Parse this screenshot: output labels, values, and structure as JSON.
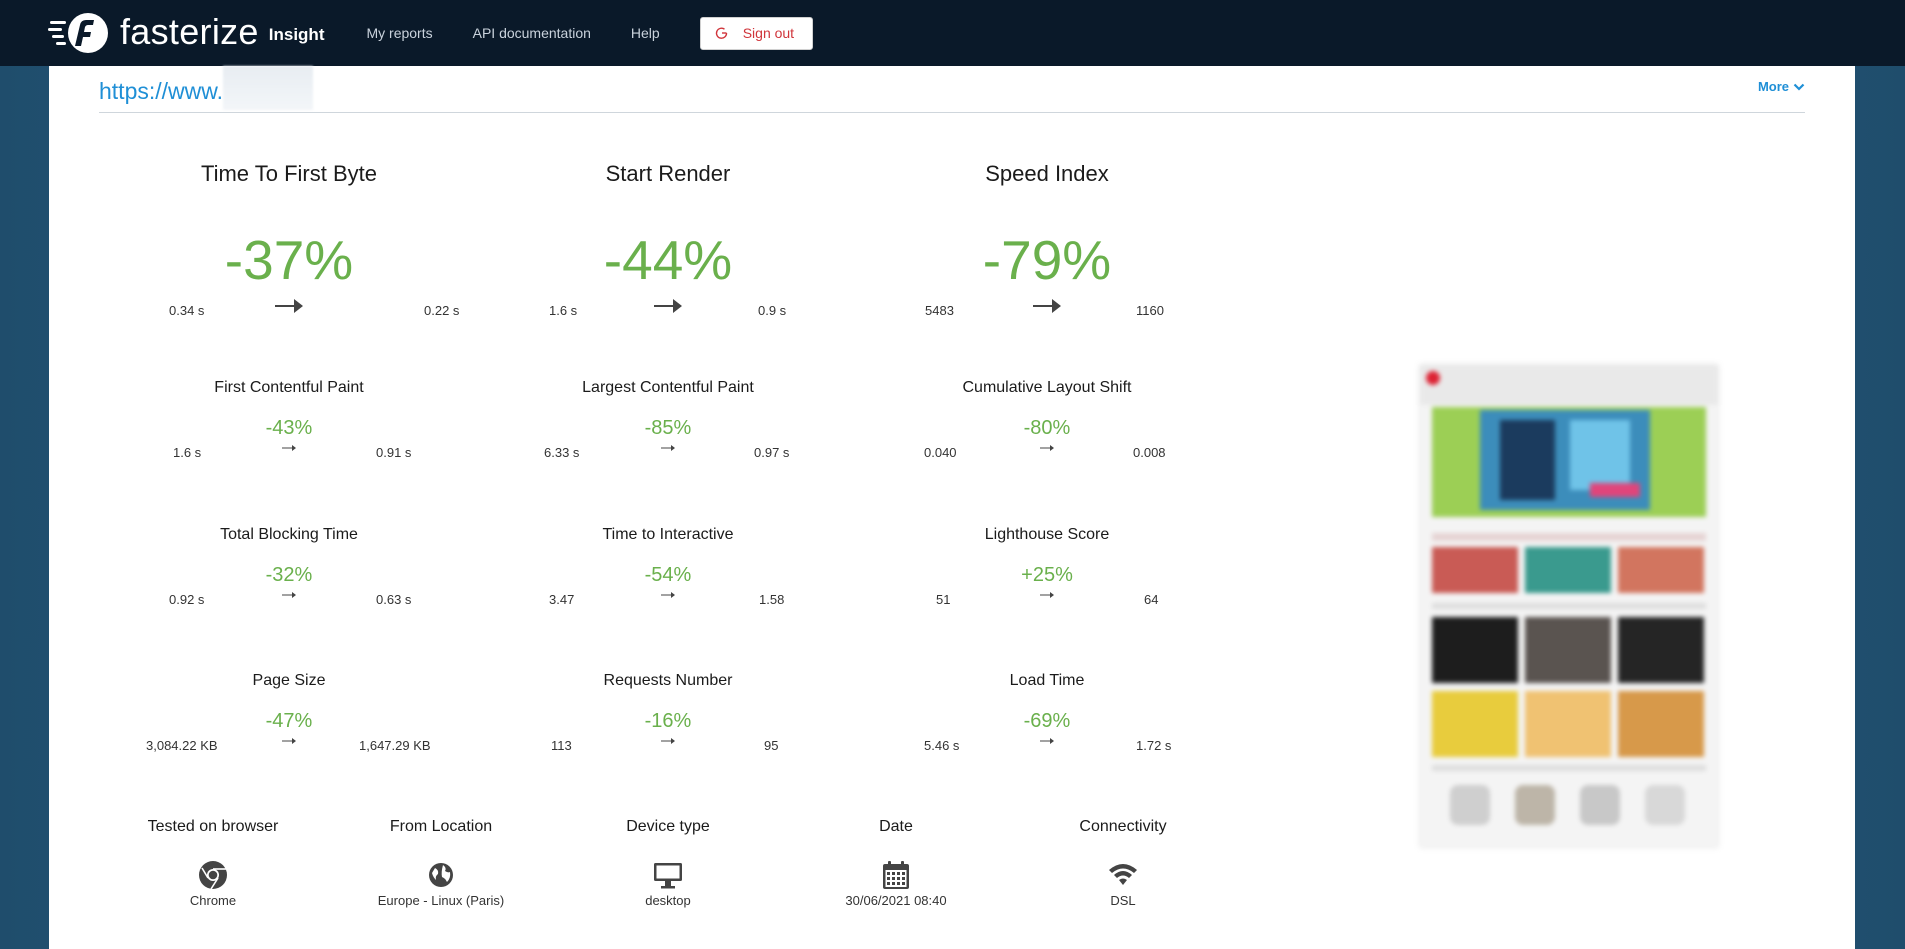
{
  "nav": {
    "brand": "fasterize",
    "brand_sub": "Insight",
    "links": [
      "My reports",
      "API documentation",
      "Help"
    ],
    "signout": "Sign out"
  },
  "url": {
    "text": "https://www.",
    "more_label": "More"
  },
  "colors": {
    "navbar": "#0a1929",
    "positive": "#6ab04c",
    "link": "#1f8fd6",
    "signout": "#d0343a"
  },
  "metrics": [
    {
      "title": "Time To First Byte",
      "change": "-37%",
      "before": "0.34 s",
      "after": "0.22 s"
    },
    {
      "title": "Start Render",
      "change": "-44%",
      "before": "1.6 s",
      "after": "0.9 s"
    },
    {
      "title": "Speed Index",
      "change": "-79%",
      "before": "5483",
      "after": "1160"
    },
    {
      "title": "First Contentful Paint",
      "change": "-43%",
      "before": "1.6 s",
      "after": "0.91 s"
    },
    {
      "title": "Largest Contentful Paint",
      "change": "-85%",
      "before": "6.33 s",
      "after": "0.97 s"
    },
    {
      "title": "Cumulative Layout Shift",
      "change": "-80%",
      "before": "0.040",
      "after": "0.008"
    },
    {
      "title": "Total Blocking Time",
      "change": "-32%",
      "before": "0.92 s",
      "after": "0.63 s"
    },
    {
      "title": "Time to Interactive",
      "change": "-54%",
      "before": "3.47",
      "after": "1.58"
    },
    {
      "title": "Lighthouse Score",
      "change": "+25%",
      "before": "51",
      "after": "64"
    },
    {
      "title": "Page Size",
      "change": "-47%",
      "before": "3,084.22 KB",
      "after": "1,647.29 KB"
    },
    {
      "title": "Requests Number",
      "change": "-16%",
      "before": "113",
      "after": "95"
    },
    {
      "title": "Load Time",
      "change": "-69%",
      "before": "5.46 s",
      "after": "1.72 s"
    }
  ],
  "test_info": [
    {
      "label": "Tested on browser",
      "value": "Chrome",
      "icon": "chrome-icon"
    },
    {
      "label": "From Location",
      "value": "Europe - Linux (Paris)",
      "icon": "globe-icon"
    },
    {
      "label": "Device type",
      "value": "desktop",
      "icon": "desktop-icon"
    },
    {
      "label": "Date",
      "value": "30/06/2021 08:40",
      "icon": "calendar-icon"
    },
    {
      "label": "Connectivity",
      "value": "DSL",
      "icon": "wifi-icon"
    }
  ]
}
